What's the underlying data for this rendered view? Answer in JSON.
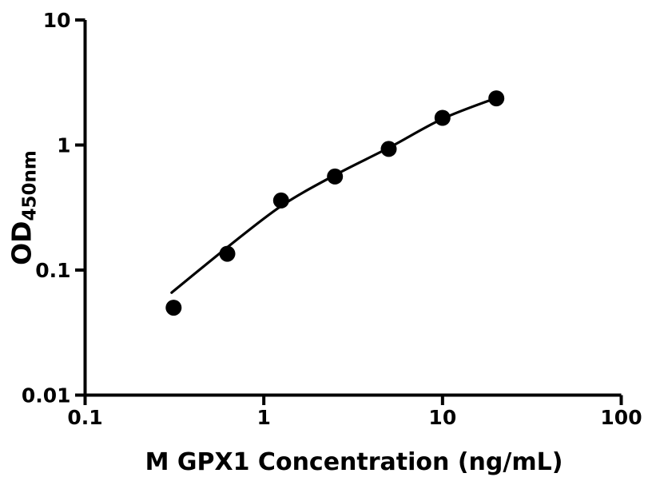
{
  "figure": {
    "background": "#ffffff"
  },
  "chart_data": {
    "type": "scatter",
    "title": "",
    "xlabel": "M GPX1 Concentration (ng/mL)",
    "ylabel_main": "OD",
    "ylabel_sub": "450nm",
    "x_scale": "log",
    "y_scale": "log",
    "xlim": [
      0.1,
      100
    ],
    "ylim": [
      0.01,
      10
    ],
    "grid": false,
    "legend": null,
    "color": "#000000",
    "x_ticks": [
      {
        "value": 0.1,
        "label": "0.1"
      },
      {
        "value": 1,
        "label": "1"
      },
      {
        "value": 10,
        "label": "10"
      },
      {
        "value": 100,
        "label": "100"
      }
    ],
    "y_ticks": [
      {
        "value": 10,
        "label": "10"
      },
      {
        "value": 1,
        "label": "1"
      },
      {
        "value": 0.1,
        "label": "0.1"
      },
      {
        "value": 0.01,
        "label": "0.01"
      }
    ],
    "series": [
      {
        "name": "standard-points",
        "type": "scatter",
        "marker": "circle",
        "color": "#000000",
        "x": [
          0.313,
          0.625,
          1.25,
          2.5,
          5,
          10,
          20
        ],
        "y": [
          0.05,
          0.135,
          0.36,
          0.56,
          0.93,
          1.65,
          2.36
        ]
      },
      {
        "name": "4pl-fit-curve",
        "type": "line",
        "color": "#000000",
        "x": [
          0.305,
          0.625,
          1.25,
          2.5,
          5,
          10,
          20
        ],
        "y": [
          0.066,
          0.152,
          0.325,
          0.575,
          0.95,
          1.62,
          2.38
        ]
      }
    ]
  }
}
